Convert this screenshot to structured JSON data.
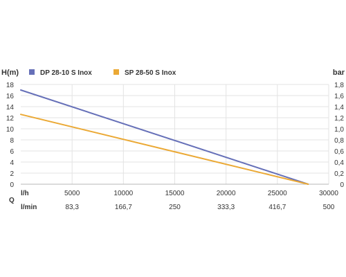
{
  "chart_data": {
    "type": "line",
    "y_left": {
      "label": "H(m)",
      "range": [
        0,
        18
      ],
      "ticks": [
        "0",
        "2",
        "4",
        "6",
        "8",
        "10",
        "12",
        "14",
        "16",
        "18"
      ]
    },
    "y_right": {
      "label": "bar",
      "range": [
        0,
        1.8
      ],
      "ticks": [
        "0",
        "0,2",
        "0,4",
        "0,6",
        "0,8",
        "1,0",
        "1,2",
        "1,4",
        "1,6",
        "1,8"
      ]
    },
    "x_lh": {
      "label": "l/h",
      "range": [
        0,
        30000
      ],
      "ticks": [
        "5000",
        "10000",
        "15000",
        "20000",
        "25000",
        "30000"
      ]
    },
    "x_lmin": {
      "label": "l/min",
      "ticks": [
        "83,3",
        "166,7",
        "250",
        "333,3",
        "416,7",
        "500"
      ]
    },
    "q_label": "Q",
    "grid": true,
    "legend_position": "top",
    "series": [
      {
        "name": "DP 28-10 S Inox",
        "color": "#6670b8",
        "x": [
          0,
          28000
        ],
        "y": [
          17.0,
          0.0
        ]
      },
      {
        "name": "SP 28-50 S Inox",
        "color": "#eba935",
        "x": [
          0,
          28000
        ],
        "y": [
          12.6,
          0.0
        ]
      }
    ]
  }
}
